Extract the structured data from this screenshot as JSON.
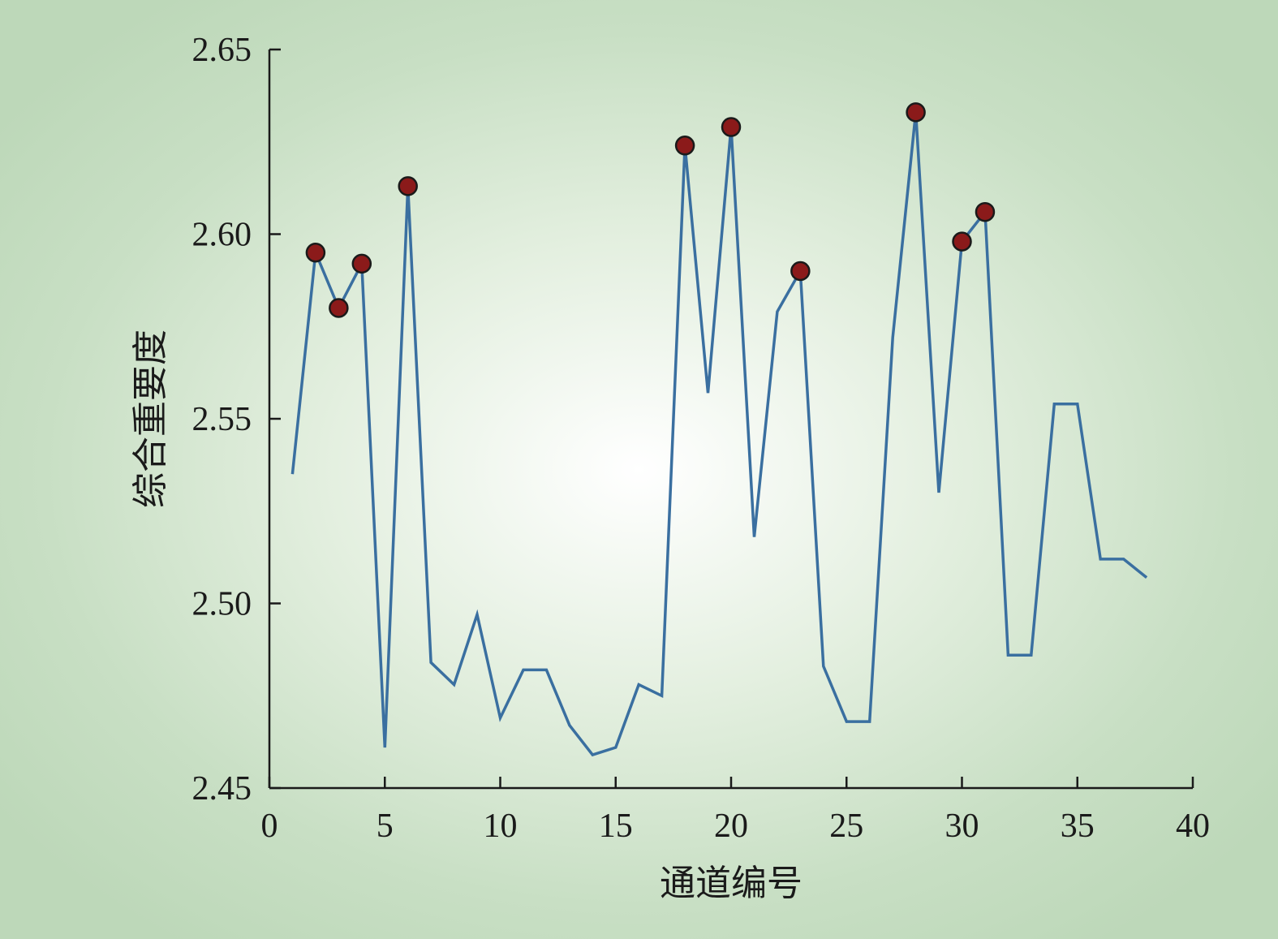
{
  "chart_data": {
    "type": "line",
    "title": "",
    "xlabel": "通道编号",
    "ylabel": "综合重要度",
    "xlim": [
      0,
      40
    ],
    "ylim": [
      2.45,
      2.65
    ],
    "xticks": [
      "0",
      "5",
      "10",
      "15",
      "20",
      "25",
      "30",
      "35",
      "40"
    ],
    "yticks": [
      "2.45",
      "2.50",
      "2.55",
      "2.60",
      "2.65"
    ],
    "grid": false,
    "line_color": "#3a6fa0",
    "marker_color": "#8b1a1a",
    "series": [
      {
        "x": [
          1,
          2,
          3,
          4,
          5,
          6,
          7,
          8,
          9,
          10,
          11,
          12,
          13,
          14,
          15,
          16,
          17,
          18,
          19,
          20,
          21,
          22,
          23,
          24,
          25,
          26,
          27,
          28,
          29,
          30,
          31,
          32,
          33,
          34,
          35,
          36,
          37,
          38
        ],
        "values": [
          2.535,
          2.595,
          2.58,
          2.592,
          2.461,
          2.613,
          2.484,
          2.478,
          2.497,
          2.469,
          2.482,
          2.482,
          2.467,
          2.459,
          2.461,
          2.478,
          2.475,
          2.624,
          2.557,
          2.629,
          2.518,
          2.579,
          2.59,
          2.483,
          2.468,
          2.468,
          2.572,
          2.633,
          2.53,
          2.598,
          2.606,
          2.486,
          2.486,
          2.554,
          2.554,
          2.512,
          2.512,
          2.507
        ]
      }
    ],
    "highlighted_x": [
      2,
      3,
      4,
      6,
      18,
      20,
      23,
      28,
      30,
      31
    ]
  }
}
